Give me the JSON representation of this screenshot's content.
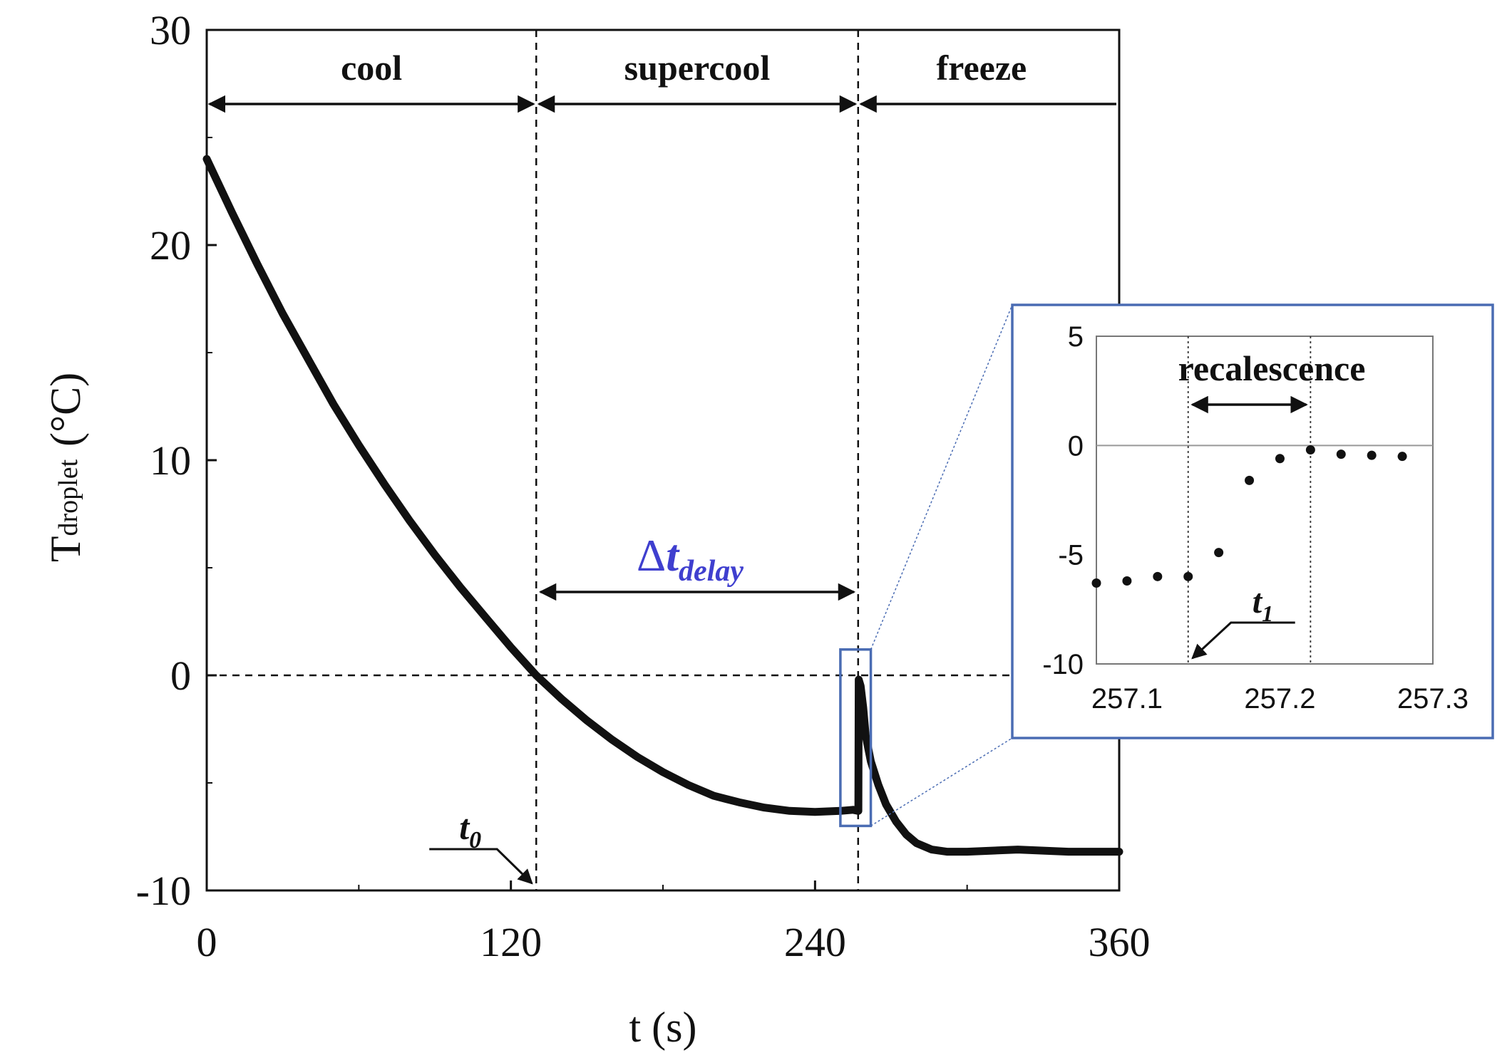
{
  "chart_data": [
    {
      "type": "line",
      "title": "",
      "xlabel": "t (s)",
      "ylabel": {
        "main": "T",
        "sub": "droplet",
        "unit": "(°C)"
      },
      "xlim": [
        0,
        360
      ],
      "ylim": [
        -10,
        30
      ],
      "xticks": [
        0,
        120,
        240,
        360
      ],
      "xtick_labels": [
        "0",
        "120",
        "240",
        "360"
      ],
      "yticks": [
        -10,
        0,
        10,
        20,
        30
      ],
      "ytick_labels": [
        "-10",
        "0",
        "10",
        "20",
        "30"
      ],
      "grid": false,
      "series": [
        {
          "name": "T_droplet",
          "x": [
            0,
            10,
            20,
            30,
            40,
            50,
            60,
            70,
            80,
            90,
            100,
            110,
            120,
            130,
            140,
            150,
            160,
            170,
            180,
            190,
            200,
            210,
            220,
            230,
            240,
            250,
            255,
            257.1,
            257.24,
            258,
            259,
            260,
            262,
            265,
            268,
            272,
            276,
            280,
            286,
            292,
            300,
            310,
            320,
            330,
            340,
            350,
            360
          ],
          "y": [
            24,
            21.5,
            19.1,
            16.8,
            14.7,
            12.6,
            10.7,
            8.9,
            7.2,
            5.6,
            4.1,
            2.7,
            1.3,
            0,
            -1.1,
            -2.1,
            -3.0,
            -3.8,
            -4.5,
            -5.1,
            -5.6,
            -5.9,
            -6.15,
            -6.3,
            -6.35,
            -6.3,
            -6.25,
            -6.3,
            -0.2,
            -0.5,
            -1.5,
            -2.8,
            -4.0,
            -5.1,
            -6.0,
            -6.8,
            -7.4,
            -7.8,
            -8.1,
            -8.2,
            -8.2,
            -8.15,
            -8.1,
            -8.15,
            -8.2,
            -8.2,
            -8.2
          ]
        }
      ],
      "reference_lines": [
        {
          "orientation": "horizontal",
          "value": 0,
          "style": "dashed"
        },
        {
          "orientation": "vertical",
          "value": 130,
          "style": "dashed"
        },
        {
          "orientation": "vertical",
          "value": 257,
          "style": "dashed"
        }
      ],
      "phases": [
        {
          "label": "cool",
          "start": 0,
          "end": 130
        },
        {
          "label": "supercool",
          "start": 130,
          "end": 257
        },
        {
          "label": "freeze",
          "start": 257,
          "end": 360
        }
      ],
      "annotations": [
        {
          "symbol": "Δ",
          "text": "t",
          "subscript": "delay",
          "from": 130,
          "to": 257,
          "y": 0.3
        },
        {
          "text": "t",
          "subscript": "0",
          "x": 130,
          "y": -10
        }
      ],
      "zoom_box": {
        "xlim": [
          250,
          262
        ],
        "ylim": [
          -7,
          1.2
        ]
      }
    },
    {
      "type": "scatter",
      "title": "recalescence",
      "xlim": [
        257.08,
        257.3
      ],
      "ylim": [
        -10,
        5
      ],
      "xticks": [
        257.1,
        257.2,
        257.3
      ],
      "xtick_labels": [
        "257.1",
        "257.2",
        "257.3"
      ],
      "yticks": [
        -10,
        -5,
        0,
        5
      ],
      "ytick_labels": [
        "-10",
        "-5",
        "0",
        "5"
      ],
      "grid": false,
      "points": [
        {
          "x": 257.08,
          "y": -6.3
        },
        {
          "x": 257.1,
          "y": -6.2
        },
        {
          "x": 257.12,
          "y": -6.0
        },
        {
          "x": 257.14,
          "y": -6.0
        },
        {
          "x": 257.16,
          "y": -4.9
        },
        {
          "x": 257.18,
          "y": -1.6
        },
        {
          "x": 257.2,
          "y": -0.6
        },
        {
          "x": 257.22,
          "y": -0.2
        },
        {
          "x": 257.24,
          "y": -0.4
        },
        {
          "x": 257.26,
          "y": -0.45
        },
        {
          "x": 257.28,
          "y": -0.5
        }
      ],
      "reference_lines": [
        {
          "orientation": "horizontal",
          "value": 0,
          "style": "solid"
        },
        {
          "orientation": "vertical",
          "value": 257.14,
          "style": "dotted"
        },
        {
          "orientation": "vertical",
          "value": 257.22,
          "style": "dotted"
        }
      ],
      "annotations": [
        {
          "text": "t",
          "subscript": "1",
          "x": 257.14,
          "y": -10
        }
      ]
    }
  ],
  "colors": {
    "delta_label": "#3f3fcf",
    "box": "#4a6cb3",
    "line": "#111111"
  }
}
